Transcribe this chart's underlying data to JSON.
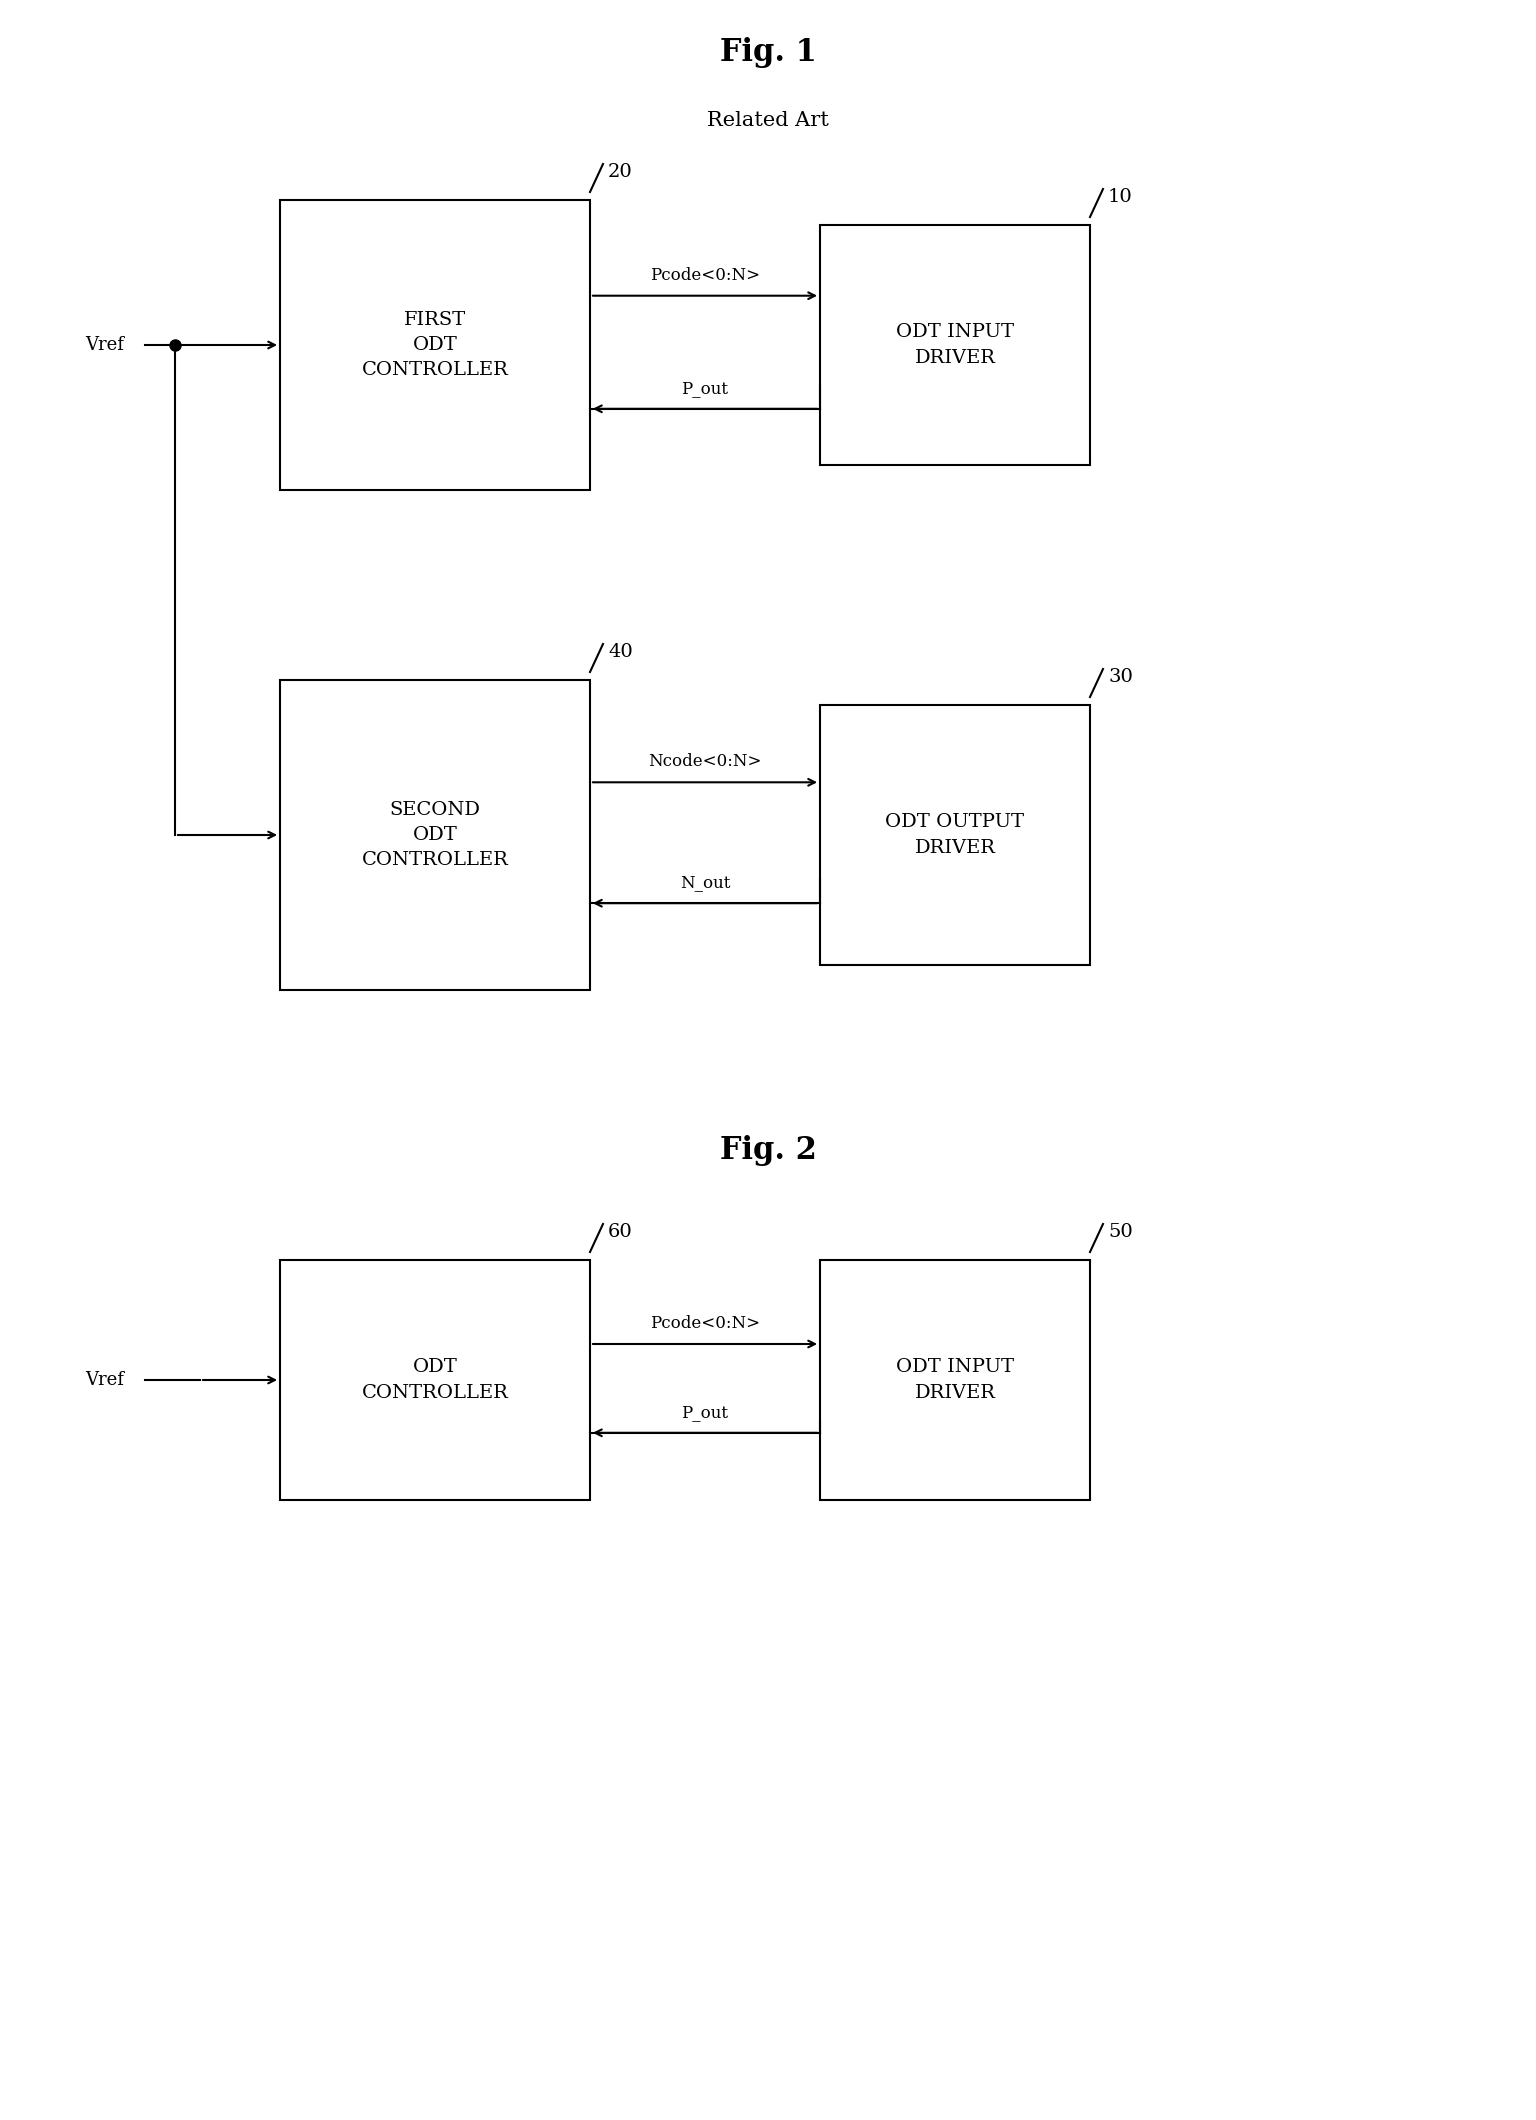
{
  "fig1_title": "Fig. 1",
  "fig1_subtitle": "Related Art",
  "fig2_title": "Fig. 2",
  "bg_color": "#ffffff",
  "fig1": {
    "box1_label": [
      "FIRST",
      "ODT",
      "CONTROLLER"
    ],
    "box1_num": "20",
    "box2_label": [
      "ODT INPUT",
      "DRIVER"
    ],
    "box2_num": "10",
    "box3_label": [
      "SECOND",
      "ODT",
      "CONTROLLER"
    ],
    "box3_num": "40",
    "box4_label": [
      "ODT OUTPUT",
      "DRIVER"
    ],
    "box4_num": "30",
    "arrow1_label": "Pcode<0:N>",
    "arrow2_label": "P_out",
    "arrow3_label": "Ncode<0:N>",
    "arrow4_label": "N_out",
    "vref_label": "Vref"
  },
  "fig2": {
    "box1_label": [
      "ODT",
      "CONTROLLER"
    ],
    "box1_num": "60",
    "box2_label": [
      "ODT INPUT",
      "DRIVER"
    ],
    "box2_num": "50",
    "arrow1_label": "Pcode<0:N>",
    "arrow2_label": "P_out",
    "vref_label": "Vref"
  }
}
